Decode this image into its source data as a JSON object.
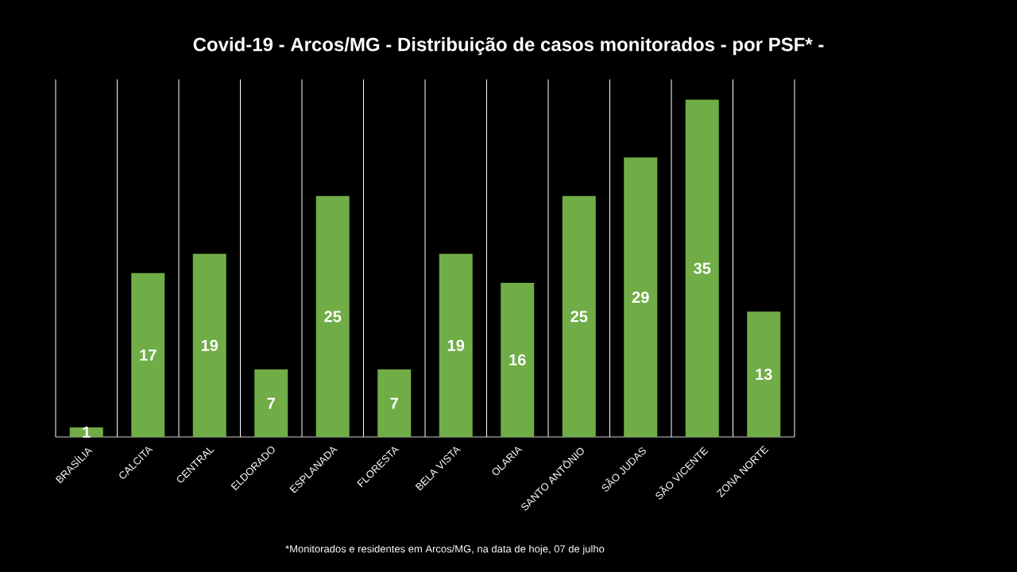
{
  "chart_data": {
    "type": "bar",
    "title": "Covid-19 - Arcos/MG - Distribuição de casos monitorados - por PSF* -",
    "categories": [
      "BRASÍLIA",
      "CALCITA",
      "CENTRAL",
      "ELDORADO",
      "ESPLANADA",
      "FLORESTA",
      "BELA VISTA",
      "OLARIA",
      "SANTO ANTÔNIO",
      "SÃO JUDAS",
      "SÃO VICENTE",
      "ZONA NORTE"
    ],
    "values": [
      1,
      17,
      19,
      7,
      25,
      7,
      19,
      16,
      25,
      29,
      35,
      13
    ],
    "color": "#70ad47",
    "data_labels": true,
    "grid": "x",
    "annotations": [
      "*Monitorados  e residentes em Arcos/MG, na data de hoje, 07 de julho"
    ]
  }
}
